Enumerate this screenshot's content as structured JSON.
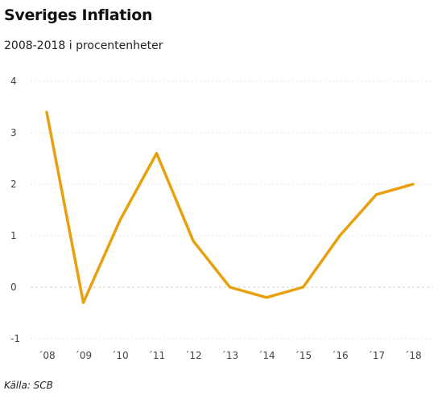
{
  "title": "Sveriges Inflation",
  "subtitle": "2008-2018 i procentenheter",
  "source": "Källa: SCB",
  "colors": {
    "line": "#E8A00E",
    "grid": "#e6e6e6",
    "zero_line": "#cfcfcf",
    "text": "#444444"
  },
  "chart_data": {
    "type": "line",
    "title": "Sveriges Inflation",
    "subtitle": "2008-2018 i procentenheter",
    "categories": [
      "´08",
      "´09",
      "´10",
      "´11",
      "´12",
      "´13",
      "´14",
      "´15",
      "´16",
      "´17",
      "´18"
    ],
    "series": [
      {
        "values": [
          3.4,
          -0.3,
          1.3,
          2.6,
          0.9,
          0.0,
          -0.2,
          0.0,
          1.0,
          1.8,
          2.0
        ]
      }
    ],
    "yticks": [
      "4",
      "3",
      "2",
      "1",
      "0",
      "-1"
    ],
    "ylim": [
      -1,
      4
    ],
    "grid": true,
    "legend": "none"
  }
}
